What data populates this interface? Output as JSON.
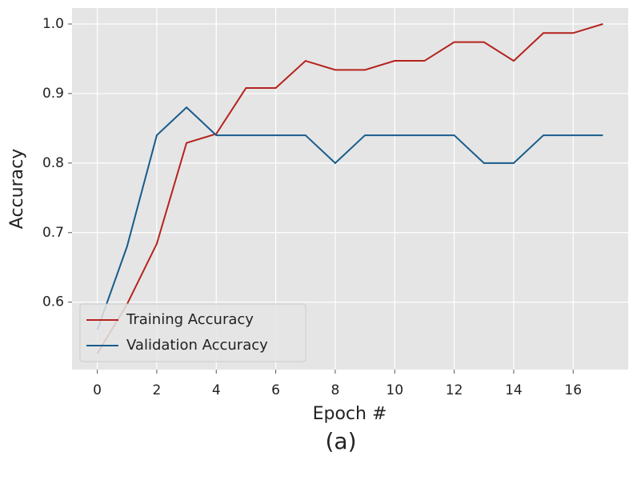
{
  "chart_data": {
    "type": "line",
    "caption": "(a)",
    "x_label": "Epoch #",
    "y_label": "Accuracy",
    "x": [
      0,
      1,
      2,
      3,
      4,
      5,
      6,
      7,
      8,
      9,
      10,
      11,
      12,
      13,
      14,
      15,
      16,
      17
    ],
    "series": [
      {
        "name": "Training Accuracy",
        "color": "#b5221c",
        "values": [
          0.526,
          0.597,
          0.684,
          0.829,
          0.842,
          0.908,
          0.908,
          0.947,
          0.934,
          0.934,
          0.947,
          0.947,
          0.974,
          0.974,
          0.947,
          0.987,
          0.987,
          1.0
        ]
      },
      {
        "name": "Validation Accuracy",
        "color": "#175c8a",
        "values": [
          0.56,
          0.68,
          0.84,
          0.88,
          0.84,
          0.84,
          0.84,
          0.84,
          0.8,
          0.84,
          0.84,
          0.84,
          0.84,
          0.8,
          0.8,
          0.84,
          0.84,
          0.84
        ]
      }
    ],
    "xlim": [
      -0.85,
      17.85
    ],
    "xticks": [
      0,
      2,
      4,
      6,
      8,
      10,
      12,
      14,
      16
    ],
    "ylim": [
      0.503,
      1.023
    ],
    "yticks": [
      0.6,
      0.7,
      0.8,
      0.9,
      {
        "value": 1,
        "label": "1.0"
      }
    ],
    "grid": true,
    "legend": "lower left"
  }
}
